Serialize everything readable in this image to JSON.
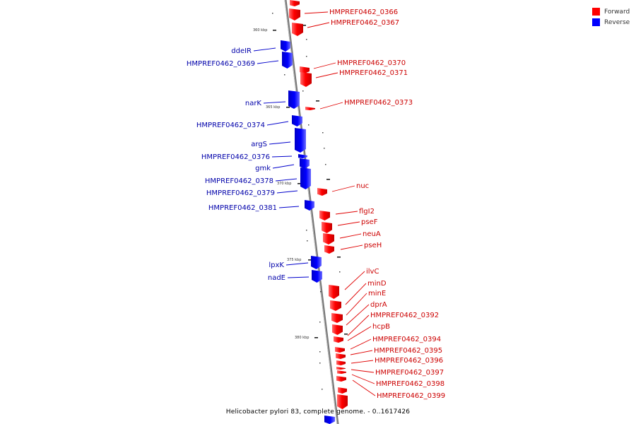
{
  "caption": "Helicobacter pylori 83, complete genome. - 0..1617426",
  "legend": {
    "forward_label": "Forward",
    "reverse_label": "Reverse",
    "forward_color": "#ff0000",
    "reverse_color": "#0000ff"
  },
  "scale_labels": [
    "360 kbp",
    "365 kbp",
    "370 kbp",
    "375 kbp",
    "380 kbp"
  ],
  "forward_genes": [
    "HMPREF0462_0366",
    "HMPREF0462_0367",
    "HMPREF0462_0370",
    "HMPREF0462_0371",
    "HMPREF0462_0373",
    "nuc",
    "flgI2",
    "pseF",
    "neuA",
    "pseH",
    "ilvC",
    "minD",
    "minE",
    "dprA",
    "HMPREF0462_0392",
    "hcpB",
    "HMPREF0462_0394",
    "HMPREF0462_0395",
    "HMPREF0462_0396",
    "HMPREF0462_0397",
    "HMPREF0462_0398",
    "HMPREF0462_0399"
  ],
  "reverse_genes": [
    "ddeIR",
    "HMPREF0462_0369",
    "narK",
    "HMPREF0462_0374",
    "argS",
    "HMPREF0462_0376",
    "gmk",
    "HMPREF0462_0378",
    "HMPREF0462_0379",
    "HMPREF0462_0381",
    "lpxK",
    "nadE"
  ]
}
